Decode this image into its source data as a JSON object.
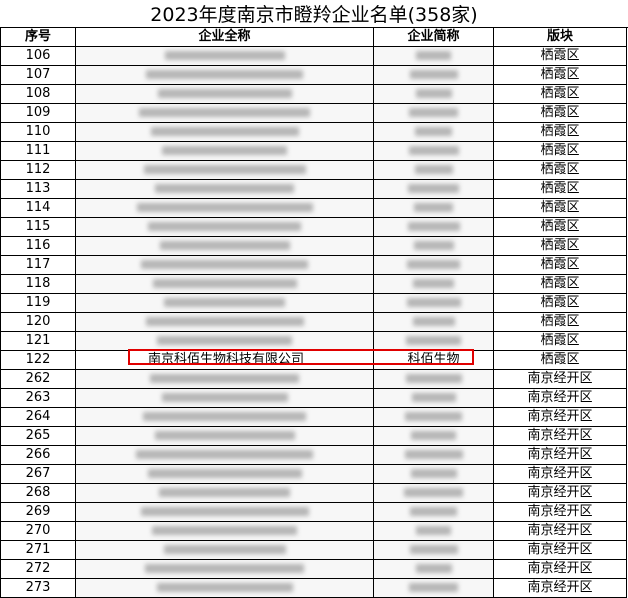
{
  "title": "2023年度南京市瞪羚企业名单(358家)",
  "headers": [
    "序号",
    "企业全称",
    "企业简称",
    "版块"
  ],
  "rows": [
    {
      "no": "106",
      "region": "栖霞区"
    },
    {
      "no": "107",
      "region": "栖霞区"
    },
    {
      "no": "108",
      "region": "栖霞区"
    },
    {
      "no": "109",
      "region": "栖霞区"
    },
    {
      "no": "110",
      "region": "栖霞区"
    },
    {
      "no": "111",
      "region": "栖霞区"
    },
    {
      "no": "112",
      "region": "栖霞区"
    },
    {
      "no": "113",
      "region": "栖霞区"
    },
    {
      "no": "114",
      "region": "栖霞区"
    },
    {
      "no": "115",
      "region": "栖霞区"
    },
    {
      "no": "116",
      "region": "栖霞区"
    },
    {
      "no": "117",
      "region": "栖霞区"
    },
    {
      "no": "118",
      "region": "栖霞区"
    },
    {
      "no": "119",
      "region": "栖霞区"
    },
    {
      "no": "120",
      "region": "栖霞区"
    },
    {
      "no": "121",
      "region": "栖霞区"
    },
    {
      "no": "122",
      "full": "南京科佰生物科技有限公司",
      "short": "科佰生物",
      "region": "栖霞区"
    },
    {
      "no": "262",
      "region": "南京经开区"
    },
    {
      "no": "263",
      "region": "南京经开区"
    },
    {
      "no": "264",
      "region": "南京经开区"
    },
    {
      "no": "265",
      "region": "南京经开区"
    },
    {
      "no": "266",
      "region": "南京经开区"
    },
    {
      "no": "267",
      "region": "南京经开区"
    },
    {
      "no": "268",
      "region": "南京经开区"
    },
    {
      "no": "269",
      "region": "南京经开区"
    },
    {
      "no": "270",
      "region": "南京经开区"
    },
    {
      "no": "271",
      "region": "南京经开区"
    },
    {
      "no": "272",
      "region": "南京经开区"
    },
    {
      "no": "273",
      "region": "南京经开区"
    }
  ],
  "highlight_color": "#e00000"
}
